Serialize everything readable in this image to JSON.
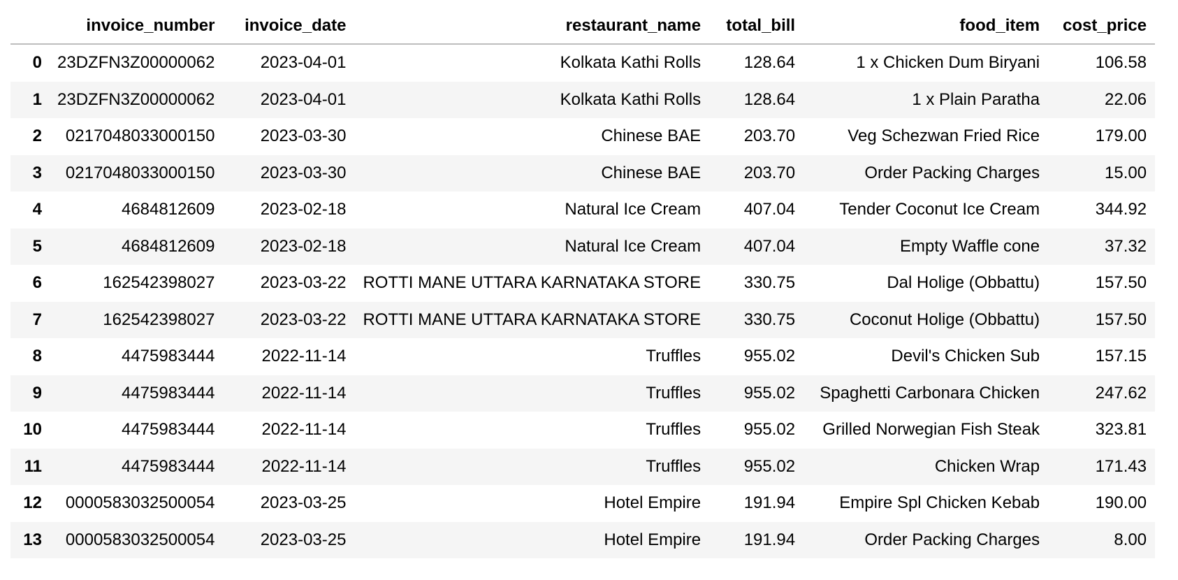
{
  "columns": [
    "invoice_number",
    "invoice_date",
    "restaurant_name",
    "total_bill",
    "food_item",
    "cost_price"
  ],
  "rows": [
    {
      "index": "0",
      "invoice_number": "23DZFN3Z00000062",
      "invoice_date": "2023-04-01",
      "restaurant_name": "Kolkata Kathi Rolls",
      "total_bill": "128.64",
      "food_item": "1 x Chicken Dum Biryani",
      "cost_price": "106.58"
    },
    {
      "index": "1",
      "invoice_number": "23DZFN3Z00000062",
      "invoice_date": "2023-04-01",
      "restaurant_name": "Kolkata Kathi Rolls",
      "total_bill": "128.64",
      "food_item": "1 x Plain Paratha",
      "cost_price": "22.06"
    },
    {
      "index": "2",
      "invoice_number": "0217048033000150",
      "invoice_date": "2023-03-30",
      "restaurant_name": "Chinese BAE",
      "total_bill": "203.70",
      "food_item": "Veg Schezwan Fried Rice",
      "cost_price": "179.00"
    },
    {
      "index": "3",
      "invoice_number": "0217048033000150",
      "invoice_date": "2023-03-30",
      "restaurant_name": "Chinese BAE",
      "total_bill": "203.70",
      "food_item": "Order Packing Charges",
      "cost_price": "15.00"
    },
    {
      "index": "4",
      "invoice_number": "4684812609",
      "invoice_date": "2023-02-18",
      "restaurant_name": "Natural Ice Cream",
      "total_bill": "407.04",
      "food_item": "Tender Coconut Ice Cream",
      "cost_price": "344.92"
    },
    {
      "index": "5",
      "invoice_number": "4684812609",
      "invoice_date": "2023-02-18",
      "restaurant_name": "Natural Ice Cream",
      "total_bill": "407.04",
      "food_item": "Empty Waffle cone",
      "cost_price": "37.32"
    },
    {
      "index": "6",
      "invoice_number": "162542398027",
      "invoice_date": "2023-03-22",
      "restaurant_name": "ROTTI MANE UTTARA KARNATAKA STORE",
      "total_bill": "330.75",
      "food_item": "Dal Holige (Obbattu)",
      "cost_price": "157.50"
    },
    {
      "index": "7",
      "invoice_number": "162542398027",
      "invoice_date": "2023-03-22",
      "restaurant_name": "ROTTI MANE UTTARA KARNATAKA STORE",
      "total_bill": "330.75",
      "food_item": "Coconut Holige (Obbattu)",
      "cost_price": "157.50"
    },
    {
      "index": "8",
      "invoice_number": "4475983444",
      "invoice_date": "2022-11-14",
      "restaurant_name": "Truffles",
      "total_bill": "955.02",
      "food_item": "Devil's Chicken Sub",
      "cost_price": "157.15"
    },
    {
      "index": "9",
      "invoice_number": "4475983444",
      "invoice_date": "2022-11-14",
      "restaurant_name": "Truffles",
      "total_bill": "955.02",
      "food_item": "Spaghetti Carbonara Chicken",
      "cost_price": "247.62"
    },
    {
      "index": "10",
      "invoice_number": "4475983444",
      "invoice_date": "2022-11-14",
      "restaurant_name": "Truffles",
      "total_bill": "955.02",
      "food_item": "Grilled Norwegian Fish Steak",
      "cost_price": "323.81"
    },
    {
      "index": "11",
      "invoice_number": "4475983444",
      "invoice_date": "2022-11-14",
      "restaurant_name": "Truffles",
      "total_bill": "955.02",
      "food_item": "Chicken Wrap",
      "cost_price": "171.43"
    },
    {
      "index": "12",
      "invoice_number": "0000583032500054",
      "invoice_date": "2023-03-25",
      "restaurant_name": "Hotel Empire",
      "total_bill": "191.94",
      "food_item": "Empire Spl Chicken Kebab",
      "cost_price": "190.00"
    },
    {
      "index": "13",
      "invoice_number": "0000583032500054",
      "invoice_date": "2023-03-25",
      "restaurant_name": "Hotel Empire",
      "total_bill": "191.94",
      "food_item": "Order Packing Charges",
      "cost_price": "8.00"
    }
  ]
}
